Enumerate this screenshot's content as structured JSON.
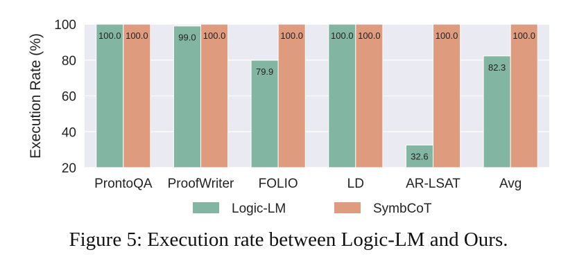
{
  "chart_data": {
    "type": "bar",
    "categories": [
      "ProntoQA",
      "ProofWriter",
      "FOLIO",
      "LD",
      "AR-LSAT",
      "Avg"
    ],
    "series": [
      {
        "name": "Logic-LM",
        "values": [
          100.0,
          99.0,
          79.9,
          100.0,
          32.6,
          82.3
        ],
        "color": "#82b6a3"
      },
      {
        "name": "SymbCoT",
        "values": [
          100.0,
          100.0,
          100.0,
          100.0,
          100.0,
          100.0
        ],
        "color": "#df9b7d"
      }
    ],
    "ylabel": "Execution Rate (%)",
    "xlabel": "",
    "ylim": [
      20,
      100
    ],
    "yticks": [
      20,
      40,
      60,
      80,
      100
    ],
    "grid": true,
    "legend_position": "bottom-center",
    "plot_background": "#eaeaf2"
  },
  "caption": "Figure 5: Execution rate between Logic-LM and Ours."
}
